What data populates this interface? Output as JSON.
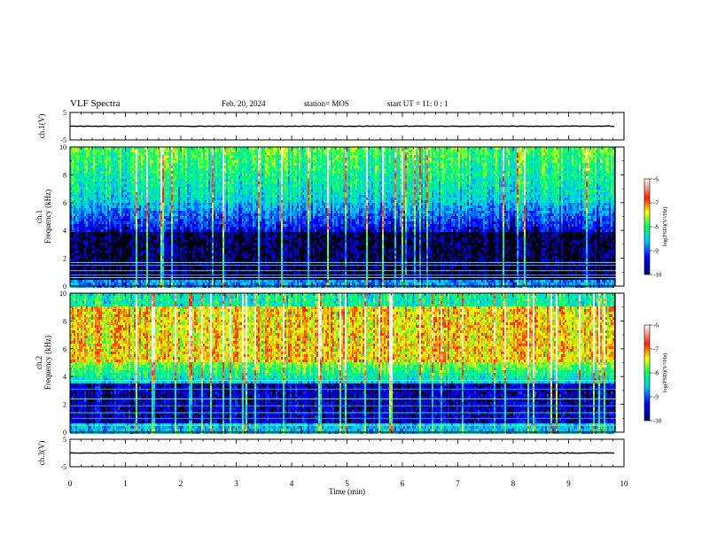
{
  "header": {
    "title": "VLF Spectra",
    "date": "Feb. 20, 2024",
    "station": "station= MOS",
    "start": "start  UT =   11: 0  : 1"
  },
  "chart_data": [
    {
      "type": "line",
      "panel": "ch1-voltage",
      "ylabel": "ch.1(V)",
      "ylim": [
        -5,
        5
      ],
      "yticks": [
        "5",
        "-5"
      ],
      "level": 0
    },
    {
      "type": "heatmap",
      "panel": "ch1-spectrogram",
      "ylabel_line1": "ch.1",
      "ylabel_line2": "Frequency (kHz)",
      "ylim": [
        0,
        10
      ],
      "yticks": [
        "0",
        "2",
        "4",
        "6",
        "8",
        "10"
      ],
      "colorbar": {
        "label": "log(PSD)(V²/Hz)",
        "ticks": [
          "-6",
          "-7",
          "-8",
          "-9",
          "-10"
        ],
        "range": [
          -10,
          -6
        ]
      },
      "lines_khz": [
        0.6,
        0.8,
        1.1,
        1.5,
        1.7
      ]
    },
    {
      "type": "heatmap",
      "panel": "ch2-spectrogram",
      "ylabel_line1": "ch.2",
      "ylabel_line2": "Frequency (kHz)",
      "ylim": [
        0,
        10
      ],
      "yticks": [
        "0",
        "2",
        "4",
        "6",
        "8",
        "10"
      ],
      "colorbar": {
        "label": "log(PSD)(V²/Hz)",
        "ticks": [
          "-6",
          "-7",
          "-8",
          "-9",
          "-10"
        ],
        "range": [
          -10,
          -6
        ]
      },
      "lines_khz": [
        0.5,
        1.0,
        1.4,
        1.9,
        2.4,
        3.1,
        3.7
      ]
    },
    {
      "type": "line",
      "panel": "ch2-voltage",
      "ylabel": "ch.3(V)",
      "ylim": [
        -5,
        5
      ],
      "yticks": [
        "5",
        "-5"
      ],
      "level": 0
    }
  ],
  "xaxis": {
    "label": "Time  (min)",
    "xlim": [
      0,
      10
    ],
    "ticks": [
      "0",
      "1",
      "2",
      "3",
      "4",
      "5",
      "6",
      "7",
      "8",
      "9",
      "10"
    ],
    "data_end": 9.85
  }
}
